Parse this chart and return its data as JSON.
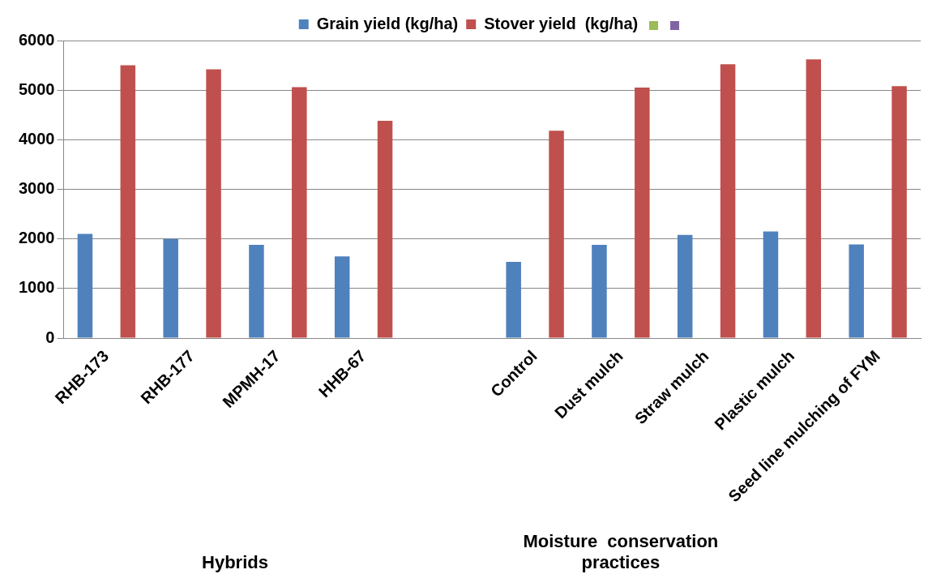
{
  "chart_data": {
    "type": "bar",
    "categories": [
      "RHB-173",
      "RHB-177",
      "MPMH-17",
      "HHB-67",
      null,
      "Control",
      "Dust mulch",
      "Straw mulch",
      "Plastic mulch",
      "Seed line mulching of FYM"
    ],
    "series": [
      {
        "name": "Grain yield (kg/ha)",
        "color": "#4f81bd",
        "values": [
          2100,
          2000,
          1880,
          1650,
          null,
          1540,
          1880,
          2080,
          2150,
          1890
        ]
      },
      {
        "name": "Stover yield  (kg/ha)",
        "color": "#c0504d",
        "values": [
          5500,
          5420,
          5060,
          4380,
          null,
          4180,
          5050,
          5520,
          5620,
          5080
        ]
      }
    ],
    "ylim": [
      0,
      6000
    ],
    "yticks": [
      0,
      1000,
      2000,
      3000,
      4000,
      5000,
      6000
    ],
    "grid": "y",
    "legend": "top",
    "annotations": [
      "Hybrids",
      "Moisture  conservation practices"
    ]
  }
}
